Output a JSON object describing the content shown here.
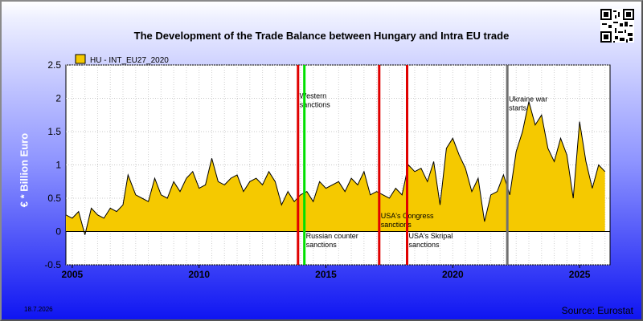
{
  "chart_data": {
    "type": "area",
    "title": "The Development of the Trade Balance between Hungary and Intra EU trade",
    "ylabel": "€ * Billion Euro",
    "xlabel": "",
    "ylim": [
      -0.5,
      2.5
    ],
    "xlim": [
      2004.75,
      2026.2
    ],
    "yticks": [
      "2.5",
      "2",
      "1.5",
      "1",
      "0.5",
      "0",
      "-0.5"
    ],
    "xticks": [
      "2005",
      "2010",
      "2015",
      "2020",
      "2025"
    ],
    "grid": true,
    "legend_position": "top-left",
    "series": [
      {
        "name": "HU - INT_EU27_2020",
        "color": "#f5c900",
        "x": [
          2004.75,
          2005.0,
          2005.25,
          2005.5,
          2005.75,
          2006.0,
          2006.25,
          2006.5,
          2006.75,
          2007.0,
          2007.2,
          2007.5,
          2007.75,
          2008.0,
          2008.25,
          2008.5,
          2008.75,
          2009.0,
          2009.25,
          2009.5,
          2009.75,
          2010.0,
          2010.25,
          2010.5,
          2010.75,
          2011.0,
          2011.25,
          2011.5,
          2011.75,
          2012.0,
          2012.25,
          2012.5,
          2012.75,
          2013.0,
          2013.25,
          2013.5,
          2013.75,
          2014.0,
          2014.25,
          2014.5,
          2014.75,
          2015.0,
          2015.25,
          2015.5,
          2015.75,
          2016.0,
          2016.25,
          2016.5,
          2016.75,
          2017.0,
          2017.25,
          2017.5,
          2017.75,
          2018.0,
          2018.25,
          2018.5,
          2018.75,
          2019.0,
          2019.25,
          2019.5,
          2019.75,
          2020.0,
          2020.25,
          2020.5,
          2020.75,
          2021.0,
          2021.25,
          2021.5,
          2021.75,
          2022.0,
          2022.25,
          2022.5,
          2022.75,
          2023.0,
          2023.25,
          2023.5,
          2023.75,
          2024.0,
          2024.25,
          2024.5,
          2024.75,
          2025.0,
          2025.25,
          2025.5,
          2025.75,
          2026.0
        ],
        "values": [
          0.25,
          0.2,
          0.3,
          -0.05,
          0.35,
          0.25,
          0.2,
          0.35,
          0.3,
          0.4,
          0.85,
          0.55,
          0.5,
          0.45,
          0.8,
          0.55,
          0.5,
          0.75,
          0.6,
          0.8,
          0.9,
          0.65,
          0.7,
          1.1,
          0.75,
          0.7,
          0.8,
          0.85,
          0.6,
          0.75,
          0.8,
          0.7,
          0.9,
          0.75,
          0.4,
          0.6,
          0.45,
          0.55,
          0.6,
          0.45,
          0.75,
          0.65,
          0.7,
          0.75,
          0.6,
          0.8,
          0.7,
          0.9,
          0.55,
          0.6,
          0.55,
          0.5,
          0.65,
          0.55,
          1.0,
          0.9,
          0.95,
          0.75,
          1.05,
          0.4,
          1.25,
          1.4,
          1.15,
          0.95,
          0.6,
          0.8,
          0.15,
          0.55,
          0.6,
          0.85,
          0.55,
          1.2,
          1.5,
          1.95,
          1.6,
          1.75,
          1.25,
          1.05,
          1.4,
          1.15,
          0.5,
          1.65,
          1.05,
          0.65,
          1.0,
          0.9
        ]
      }
    ],
    "annotations": [
      {
        "x": 2013.9,
        "color": "#e00000",
        "label": "Western sanctions",
        "label_y": 2.0
      },
      {
        "x": 2014.15,
        "color": "#00e000",
        "label": "Russian counter sanctions",
        "label_y": -0.1
      },
      {
        "x": 2017.1,
        "color": "#e00000",
        "label": "USA's Congress sanctions",
        "label_y": 0.2
      },
      {
        "x": 2018.2,
        "color": "#e00000",
        "label": "USA's Skripal sanctions",
        "label_y": -0.1
      },
      {
        "x": 2022.15,
        "color": "#707070",
        "label": "Ukraine war starts",
        "label_y": 1.95
      }
    ]
  },
  "footer": {
    "date": "18.7.2026",
    "source": "Source: Eurostat"
  }
}
